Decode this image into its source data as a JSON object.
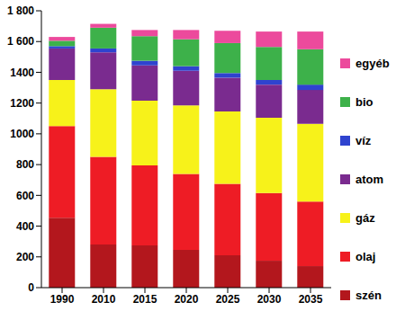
{
  "chart_data": {
    "type": "bar",
    "stacked": true,
    "categories": [
      "1990",
      "2010",
      "2015",
      "2020",
      "2025",
      "2030",
      "2035"
    ],
    "series": [
      {
        "name": "szén",
        "color": "#b3171d",
        "values": [
          455,
          280,
          275,
          245,
          210,
          175,
          140
        ]
      },
      {
        "name": "olaj",
        "color": "#ee1c25",
        "values": [
          595,
          570,
          520,
          495,
          465,
          440,
          420
        ]
      },
      {
        "name": "gáz",
        "color": "#f7f21a",
        "values": [
          300,
          440,
          420,
          445,
          470,
          490,
          505
        ]
      },
      {
        "name": "atom",
        "color": "#7a2b8f",
        "values": [
          205,
          240,
          230,
          225,
          220,
          215,
          220
        ]
      },
      {
        "name": "víz",
        "color": "#2f43cf",
        "values": [
          15,
          25,
          30,
          30,
          30,
          30,
          35
        ]
      },
      {
        "name": "bio",
        "color": "#3db14a",
        "values": [
          35,
          135,
          160,
          175,
          195,
          215,
          230
        ]
      },
      {
        "name": "egyéb",
        "color": "#ec4a9c",
        "values": [
          25,
          25,
          40,
          60,
          80,
          100,
          115
        ]
      }
    ],
    "ylim": [
      0,
      1800
    ],
    "yticks": [
      0,
      200,
      400,
      600,
      800,
      1000,
      1200,
      1400,
      {
        "value": 1600,
        "label": "1 600"
      },
      {
        "value": 1800,
        "label": "1 800"
      }
    ],
    "grid": false,
    "legend": "right"
  }
}
